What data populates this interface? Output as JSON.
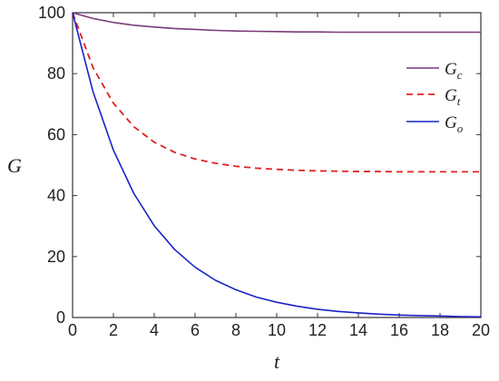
{
  "chart_data": {
    "type": "line",
    "xlabel": "t",
    "ylabel": "G",
    "xlim": [
      0,
      20
    ],
    "ylim": [
      0,
      100
    ],
    "xticks": [
      "0",
      "2",
      "4",
      "6",
      "8",
      "10",
      "12",
      "14",
      "16",
      "18",
      "20"
    ],
    "yticks": [
      "0",
      "20",
      "40",
      "60",
      "80",
      "100"
    ],
    "legend_position": "top-right",
    "grid": false,
    "x": [
      0,
      1,
      2,
      3,
      4,
      5,
      6,
      7,
      8,
      9,
      10,
      11,
      12,
      13,
      14,
      15,
      16,
      17,
      18,
      19,
      20
    ],
    "series": [
      {
        "name": "Gc",
        "name_base": "G",
        "name_sub": "c",
        "color": "#7a3a78",
        "style": "solid",
        "values": [
          100,
          98.1,
          96.8,
          95.9,
          95.3,
          94.8,
          94.5,
          94.2,
          94.0,
          93.9,
          93.8,
          93.7,
          93.7,
          93.6,
          93.6,
          93.6,
          93.6,
          93.6,
          93.6,
          93.6,
          93.6
        ]
      },
      {
        "name": "Gt",
        "name_base": "G",
        "name_sub": "t",
        "color": "#e02020",
        "style": "dashed",
        "values": [
          100,
          82.0,
          70.3,
          62.6,
          57.5,
          54.2,
          52.0,
          50.6,
          49.6,
          49.0,
          48.6,
          48.3,
          48.1,
          48.0,
          47.9,
          47.9,
          47.8,
          47.8,
          47.8,
          47.8,
          47.8
        ]
      },
      {
        "name": "Go",
        "name_base": "G",
        "name_sub": "o",
        "color": "#1a22c8",
        "style": "solid",
        "values": [
          100,
          74.1,
          54.9,
          40.7,
          30.1,
          22.3,
          16.5,
          12.2,
          9.1,
          6.7,
          5.0,
          3.7,
          2.7,
          2.0,
          1.5,
          1.1,
          0.8,
          0.6,
          0.5,
          0.3,
          0.2
        ]
      }
    ]
  }
}
